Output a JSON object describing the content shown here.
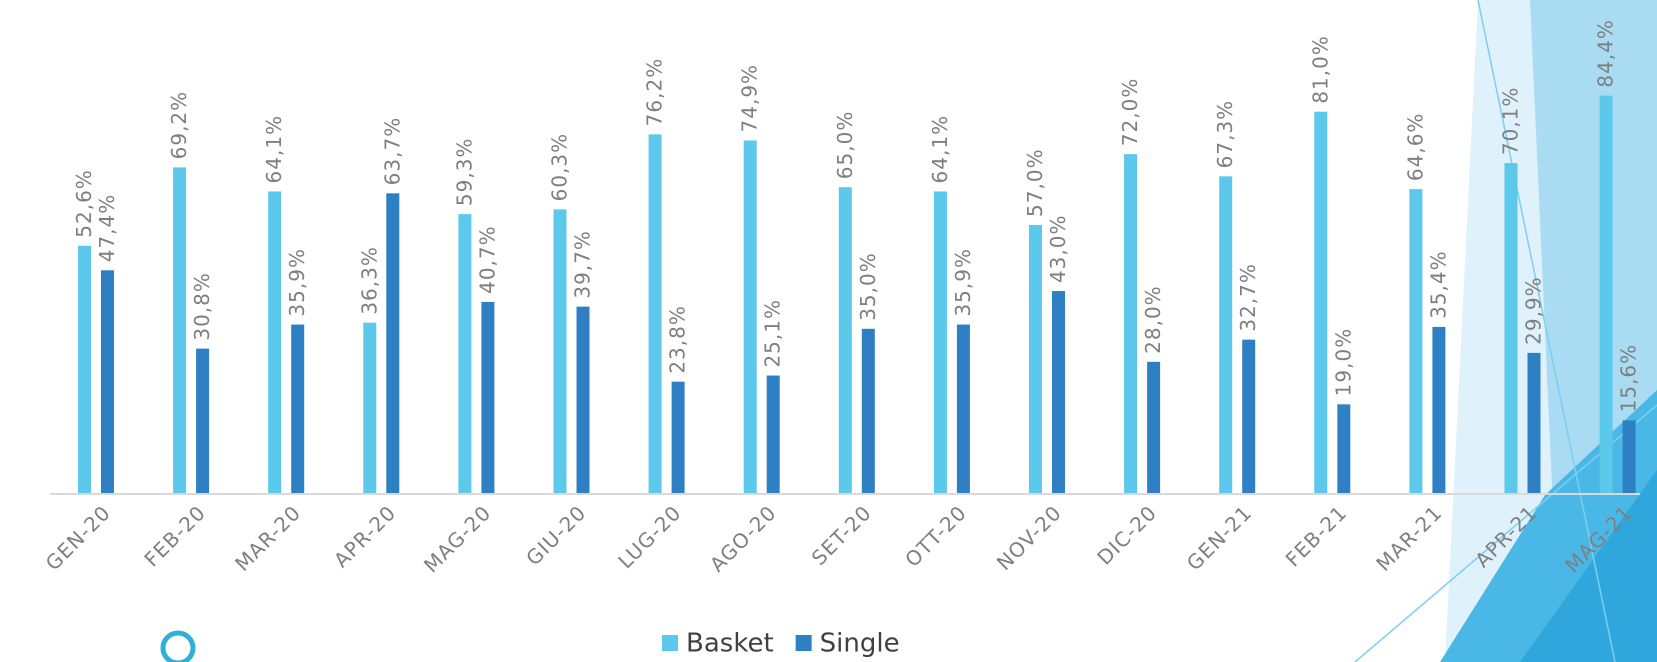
{
  "chart_data": {
    "type": "bar",
    "categories": [
      "GEN-20",
      "FEB-20",
      "MAR-20",
      "APR-20",
      "MAG-20",
      "GIU-20",
      "LUG-20",
      "AGO-20",
      "SET-20",
      "OTT-20",
      "NOV-20",
      "DIC-20",
      "GEN-21",
      "FEB-21",
      "MAR-21",
      "APR-21",
      "MAG-21"
    ],
    "series": [
      {
        "name": "Basket",
        "color": "#5bc8ec",
        "values": [
          52.6,
          69.2,
          64.1,
          36.3,
          59.3,
          60.3,
          76.2,
          74.9,
          65.0,
          64.1,
          57.0,
          72.0,
          67.3,
          81.0,
          64.6,
          70.1,
          84.4
        ],
        "value_labels": [
          "52,6%",
          "69,2%",
          "64,1%",
          "36,3%",
          "59,3%",
          "60,3%",
          "76,2%",
          "74,9%",
          "65,0%",
          "64,1%",
          "57,0%",
          "72,0%",
          "67,3%",
          "81,0%",
          "64,6%",
          "70,1%",
          "84,4%"
        ]
      },
      {
        "name": "Single",
        "color": "#2e7fc3",
        "values": [
          47.4,
          30.8,
          35.9,
          63.7,
          40.7,
          39.7,
          23.8,
          25.1,
          35.0,
          35.9,
          43.0,
          28.0,
          32.7,
          19.0,
          35.4,
          29.9,
          15.6
        ],
        "value_labels": [
          "47,4%",
          "30,8%",
          "35,9%",
          "63,7%",
          "40,7%",
          "39,7%",
          "23,8%",
          "25,1%",
          "35,0%",
          "35,9%",
          "43,0%",
          "28,0%",
          "32,7%",
          "19,0%",
          "35,4%",
          "29,9%",
          "15,6%"
        ]
      }
    ],
    "ylim": [
      0,
      100
    ]
  }
}
